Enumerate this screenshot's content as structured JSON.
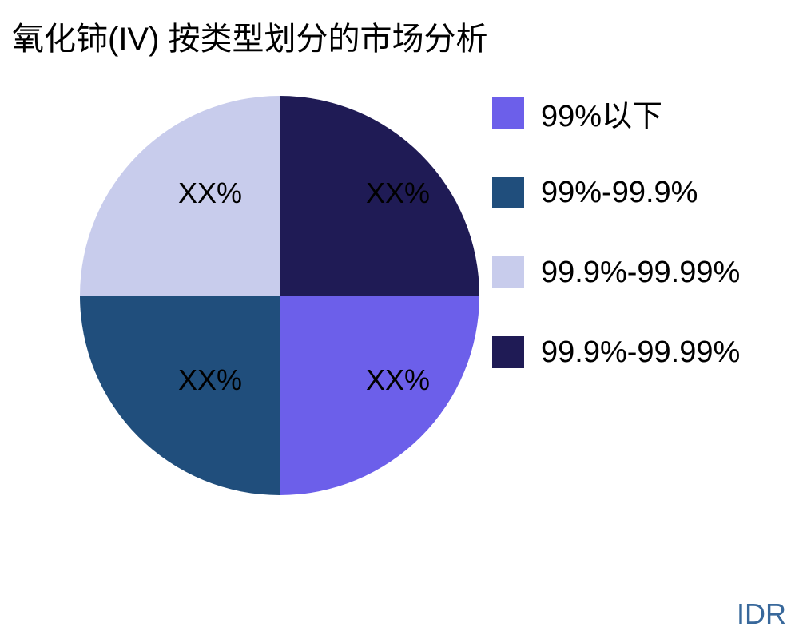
{
  "watermark": {
    "text": "IDR",
    "color": "#38689B"
  },
  "chart_data": {
    "type": "pie",
    "title": "氧化铈(IV) 按类型划分的市场分析",
    "title_color": "#000000",
    "background_color": "#ffffff",
    "legend_position": "right",
    "start_angle": "east",
    "direction": "clockwise",
    "slices": [
      {
        "label": "99%以下",
        "value_pct": 25,
        "data_label": "XX%",
        "color": "#6C5FEA",
        "position": "bottom-right"
      },
      {
        "label": "99%-99.9%",
        "value_pct": 25,
        "data_label": "XX%",
        "color": "#204E7C",
        "position": "bottom-left"
      },
      {
        "label": "99.9%-99.99%",
        "value_pct": 25,
        "data_label": "XX%",
        "color": "#C8CCEC",
        "position": "top-left"
      },
      {
        "label": "99.9%-99.99%",
        "value_pct": 25,
        "data_label": "XX%",
        "color": "#1F1B55",
        "position": "top-right"
      }
    ]
  }
}
